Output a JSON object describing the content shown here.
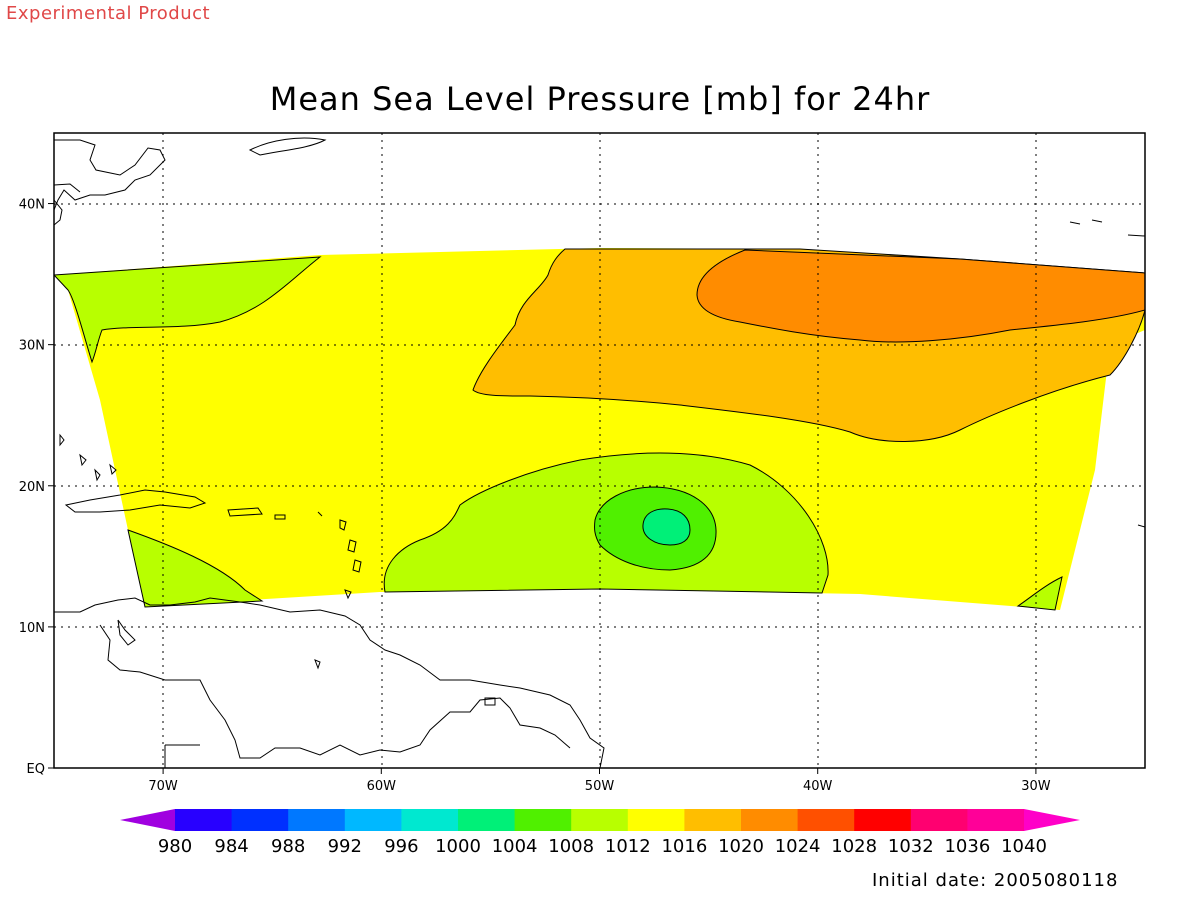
{
  "header": {
    "product_label": "Experimental Product"
  },
  "title": "Mean Sea Level Pressure [mb] for 24hr",
  "footer": {
    "initial_date": "Initial date: 2005080118"
  },
  "map": {
    "lon_range": [
      -75,
      -25
    ],
    "lat_range": [
      0,
      45
    ],
    "lon_ticks": [
      {
        "value": -70,
        "label": "70W"
      },
      {
        "value": -60,
        "label": "60W"
      },
      {
        "value": -50,
        "label": "50W"
      },
      {
        "value": -40,
        "label": "40W"
      },
      {
        "value": -30,
        "label": "30W"
      }
    ],
    "lat_ticks": [
      {
        "value": 0,
        "label": "EQ"
      },
      {
        "value": 10,
        "label": "10N"
      },
      {
        "value": 20,
        "label": "20N"
      },
      {
        "value": 30,
        "label": "30N"
      },
      {
        "value": 40,
        "label": "40N"
      }
    ],
    "grid": "dotted"
  },
  "colorbar": {
    "levels": [
      "980",
      "984",
      "988",
      "992",
      "996",
      "1000",
      "1004",
      "1008",
      "1012",
      "1016",
      "1020",
      "1024",
      "1028",
      "1032",
      "1036",
      "1040"
    ],
    "colors": [
      "#a000e0",
      "#2800ff",
      "#0030ff",
      "#0078ff",
      "#00b8ff",
      "#00e8d0",
      "#00f078",
      "#50f000",
      "#b8ff00",
      "#ffff00",
      "#ffbe00",
      "#ff8c00",
      "#ff5000",
      "#ff0000",
      "#ff0070",
      "#ff0098",
      "#ff00c8"
    ]
  },
  "fields": {
    "domain_fill": "#ffff00",
    "contours": [
      {
        "level": 1008,
        "color": "#b8ff00"
      },
      {
        "level": 1004,
        "color": "#50f000"
      },
      {
        "level": 1000,
        "color": "#00f078"
      },
      {
        "level": 1020,
        "color": "#ffbe00"
      },
      {
        "level": 1024,
        "color": "#ff8c00"
      }
    ]
  }
}
